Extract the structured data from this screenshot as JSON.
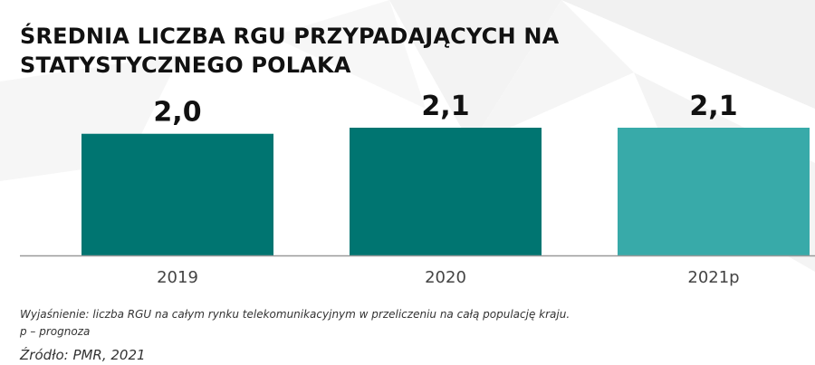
{
  "title_lines": [
    "ŚREDNIA LICZBA RGU PRZYPADAJĄCYCH NA",
    "STATYSTYCZNEGO POLAKA"
  ],
  "chart_data": {
    "type": "bar",
    "categories": [
      "2019",
      "2020",
      "2021p"
    ],
    "values": [
      2.0,
      2.1,
      2.1
    ],
    "value_labels": [
      "2,0",
      "2,1",
      "2,1"
    ],
    "title": "ŚREDNIA LICZBA RGU PRZYPADAJĄCYCH NA STATYSTYCZNEGO POLAKA",
    "xlabel": "",
    "ylabel": "",
    "ylim": [
      0,
      2.1
    ],
    "grid": false,
    "bar_colors": [
      "#007571",
      "#007571",
      "#38aaa9"
    ]
  },
  "footnotes": {
    "explanation": "Wyjaśnienie: liczba RGU na całym rynku telekomunikacyjnym w przeliczeniu na całą populację kraju.",
    "forecast": "p – prognoza",
    "source": "Źródło: PMR, 2021"
  }
}
